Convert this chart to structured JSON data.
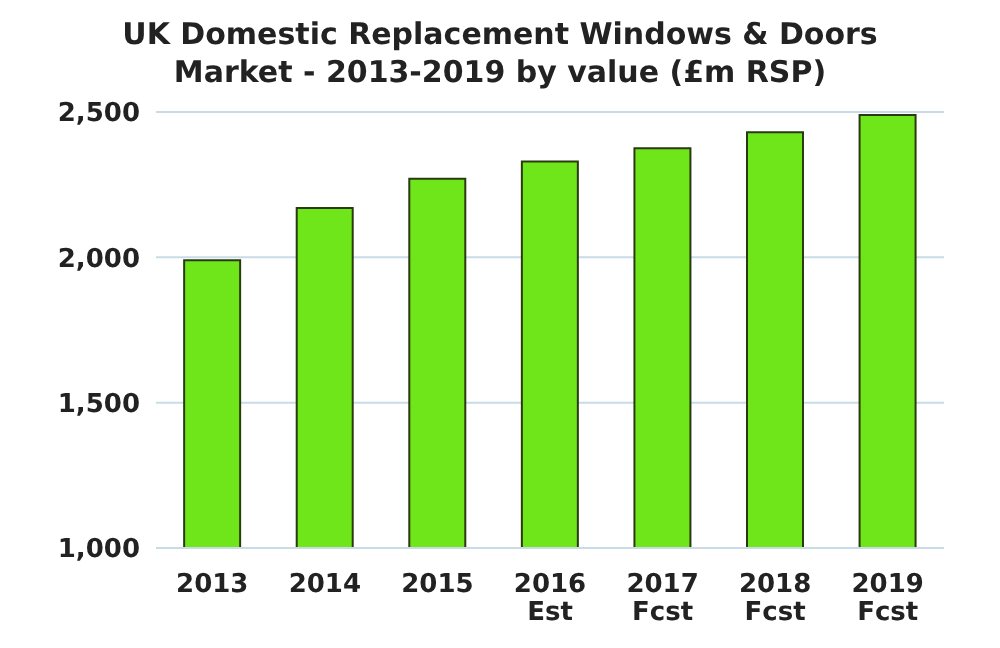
{
  "chart_data": {
    "type": "bar",
    "title": "UK Domestic Replacement Windows & Doors\nMarket - 2013-2019 by value (£m RSP)",
    "categories": [
      "2013",
      "2014",
      "2015",
      "2016\nEst",
      "2017\nFcst",
      "2018\nFcst",
      "2019\nFcst"
    ],
    "values": [
      1990,
      2170,
      2270,
      2330,
      2375,
      2430,
      2490
    ],
    "color": "#6ee619",
    "ylim": [
      1000,
      2500
    ],
    "yticks": [
      {
        "value": 1000,
        "label": "1,000"
      },
      {
        "value": 1500,
        "label": "1,500"
      },
      {
        "value": 2000,
        "label": "2,000"
      },
      {
        "value": 2500,
        "label": "2,500"
      }
    ],
    "grid": "y"
  }
}
